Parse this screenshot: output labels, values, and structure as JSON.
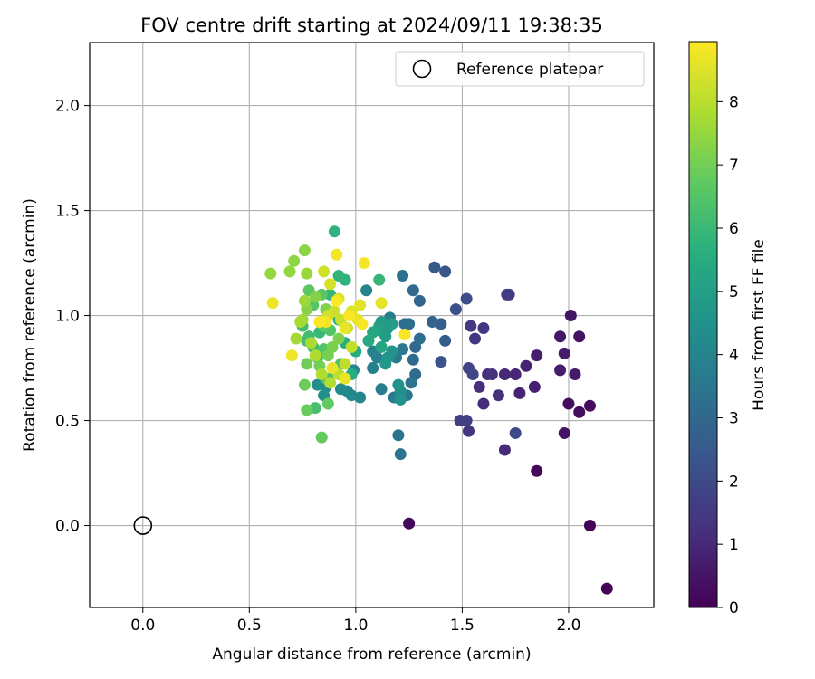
{
  "chart_data": {
    "type": "scatter",
    "title": "FOV centre drift starting at 2024/09/11 19:38:35",
    "xlabel": "Angular distance from reference (arcmin)",
    "ylabel": "Rotation from reference (arcmin)",
    "xlim": [
      -0.25,
      2.4
    ],
    "ylim": [
      -0.39,
      2.3
    ],
    "xticks": [
      "0.0",
      "0.5",
      "1.0",
      "1.5",
      "2.0"
    ],
    "yticks": [
      "0.0",
      "0.5",
      "1.0",
      "1.5",
      "2.0"
    ],
    "grid": true,
    "legend": {
      "position": "top-right",
      "entries": [
        "Reference platepar"
      ]
    },
    "reference_point": {
      "x": 0.0,
      "y": 0.0
    },
    "colorbar": {
      "label": "Hours from first FF file",
      "colormap": "viridis",
      "range": [
        0,
        8.95
      ],
      "ticks": [
        "0",
        "1",
        "2",
        "3",
        "4",
        "5",
        "6",
        "7",
        "8"
      ]
    },
    "points": [
      [
        2.18,
        -0.3,
        0.05
      ],
      [
        2.1,
        0.0,
        0.1
      ],
      [
        1.25,
        0.01,
        0.15
      ],
      [
        1.85,
        0.26,
        0.2
      ],
      [
        2.1,
        0.57,
        0.25
      ],
      [
        2.05,
        0.54,
        0.3
      ],
      [
        2.0,
        0.58,
        0.35
      ],
      [
        1.98,
        0.44,
        0.4
      ],
      [
        2.05,
        0.9,
        0.45
      ],
      [
        2.01,
        1.0,
        0.5
      ],
      [
        1.96,
        0.9,
        0.55
      ],
      [
        2.03,
        0.72,
        0.6
      ],
      [
        1.98,
        0.82,
        0.65
      ],
      [
        1.96,
        0.74,
        0.7
      ],
      [
        1.85,
        0.81,
        0.75
      ],
      [
        1.84,
        0.66,
        0.8
      ],
      [
        1.8,
        0.76,
        0.85
      ],
      [
        1.77,
        0.63,
        0.9
      ],
      [
        1.75,
        0.72,
        0.95
      ],
      [
        1.7,
        0.72,
        1.0
      ],
      [
        1.7,
        0.36,
        1.05
      ],
      [
        1.6,
        0.58,
        1.1
      ],
      [
        1.62,
        0.72,
        1.15
      ],
      [
        1.58,
        0.66,
        1.2
      ],
      [
        1.67,
        0.62,
        1.25
      ],
      [
        1.64,
        0.72,
        1.3
      ],
      [
        1.53,
        0.45,
        1.35
      ],
      [
        1.6,
        0.94,
        1.4
      ],
      [
        1.56,
        0.89,
        1.45
      ],
      [
        1.54,
        0.95,
        1.5
      ],
      [
        1.71,
        1.1,
        1.55
      ],
      [
        1.72,
        1.1,
        1.6
      ],
      [
        1.52,
        0.5,
        1.65
      ],
      [
        1.49,
        0.5,
        1.7
      ],
      [
        1.53,
        0.75,
        1.8
      ],
      [
        1.55,
        0.72,
        1.9
      ],
      [
        1.75,
        0.44,
        2.0
      ],
      [
        1.52,
        1.08,
        2.1
      ],
      [
        1.47,
        1.03,
        2.2
      ],
      [
        1.4,
        0.78,
        2.3
      ],
      [
        1.42,
        1.21,
        2.4
      ],
      [
        1.37,
        1.23,
        2.5
      ],
      [
        1.42,
        0.88,
        2.6
      ],
      [
        1.4,
        0.96,
        2.7
      ],
      [
        1.36,
        0.97,
        2.8
      ],
      [
        1.3,
        1.07,
        2.9
      ],
      [
        1.27,
        1.12,
        3.0
      ],
      [
        1.28,
        0.85,
        3.05
      ],
      [
        1.27,
        0.79,
        3.1
      ],
      [
        1.28,
        0.72,
        3.15
      ],
      [
        1.3,
        0.89,
        3.2
      ],
      [
        1.23,
        0.96,
        3.25
      ],
      [
        1.25,
        0.96,
        3.3
      ],
      [
        1.22,
        1.19,
        3.35
      ],
      [
        1.2,
        0.43,
        3.4
      ],
      [
        1.21,
        0.34,
        3.45
      ],
      [
        1.26,
        0.68,
        3.5
      ],
      [
        1.24,
        0.62,
        3.55
      ],
      [
        1.22,
        0.84,
        3.6
      ],
      [
        1.19,
        0.8,
        3.65
      ],
      [
        1.18,
        0.61,
        3.7
      ],
      [
        1.16,
        0.99,
        3.75
      ],
      [
        1.12,
        0.65,
        3.8
      ],
      [
        1.1,
        0.8,
        3.85
      ],
      [
        1.08,
        0.75,
        3.9
      ],
      [
        1.08,
        0.83,
        3.95
      ],
      [
        1.05,
        1.12,
        4.0
      ],
      [
        1.02,
        0.61,
        4.05
      ],
      [
        0.99,
        0.74,
        4.1
      ],
      [
        0.98,
        0.62,
        4.15
      ],
      [
        0.96,
        0.64,
        4.2
      ],
      [
        0.93,
        0.65,
        4.25
      ],
      [
        0.86,
        0.66,
        4.3
      ],
      [
        0.82,
        0.67,
        4.35
      ],
      [
        0.85,
        0.62,
        4.4
      ],
      [
        1.21,
        0.64,
        4.45
      ],
      [
        1.21,
        0.6,
        4.5
      ],
      [
        1.2,
        0.67,
        4.55
      ],
      [
        1.17,
        0.83,
        4.6
      ],
      [
        1.15,
        0.8,
        4.65
      ],
      [
        1.14,
        0.77,
        4.7
      ],
      [
        1.13,
        0.92,
        4.75
      ],
      [
        1.12,
        0.97,
        4.8
      ],
      [
        1.15,
        0.94,
        4.85
      ],
      [
        1.17,
        0.96,
        4.9
      ],
      [
        1.14,
        0.9,
        4.95
      ],
      [
        1.11,
        0.95,
        5.0
      ],
      [
        1.1,
        0.93,
        5.1
      ],
      [
        1.12,
        0.85,
        5.2
      ],
      [
        1.08,
        0.92,
        5.3
      ],
      [
        1.06,
        0.88,
        5.4
      ],
      [
        1.0,
        0.83,
        5.5
      ],
      [
        0.98,
        0.72,
        5.55
      ],
      [
        0.95,
        0.87,
        5.6
      ],
      [
        0.92,
        0.98,
        5.65
      ],
      [
        0.9,
        1.4,
        5.7
      ],
      [
        0.95,
        1.17,
        5.75
      ],
      [
        0.92,
        1.19,
        5.8
      ],
      [
        0.88,
        1.1,
        5.85
      ],
      [
        1.11,
        1.17,
        5.9
      ],
      [
        0.83,
        0.92,
        5.95
      ],
      [
        0.82,
        0.8,
        6.0
      ],
      [
        0.8,
        0.85,
        6.05
      ],
      [
        0.78,
        0.9,
        6.1
      ],
      [
        0.75,
        0.95,
        6.15
      ],
      [
        0.77,
        0.88,
        6.2
      ],
      [
        0.81,
        0.56,
        6.25
      ],
      [
        0.86,
        0.7,
        6.3
      ],
      [
        0.9,
        0.73,
        6.35
      ],
      [
        0.93,
        0.77,
        6.4
      ],
      [
        0.85,
        0.84,
        6.45
      ],
      [
        0.88,
        0.93,
        6.5
      ],
      [
        0.8,
        1.05,
        6.55
      ],
      [
        0.84,
        1.1,
        6.6
      ],
      [
        0.78,
        1.12,
        6.65
      ],
      [
        0.85,
        0.95,
        6.7
      ],
      [
        0.87,
        0.58,
        6.75
      ],
      [
        0.84,
        0.42,
        6.8
      ],
      [
        0.77,
        0.55,
        6.85
      ],
      [
        0.76,
        0.67,
        6.9
      ],
      [
        0.77,
        0.77,
        6.95
      ],
      [
        0.83,
        0.76,
        7.0
      ],
      [
        0.87,
        0.81,
        7.05
      ],
      [
        0.89,
        0.85,
        7.1
      ],
      [
        0.92,
        0.89,
        7.15
      ],
      [
        0.86,
        1.03,
        7.2
      ],
      [
        0.81,
        1.09,
        7.25
      ],
      [
        0.77,
        1.03,
        7.3
      ],
      [
        0.76,
        1.31,
        7.35
      ],
      [
        0.71,
        1.26,
        7.4
      ],
      [
        0.69,
        1.21,
        7.45
      ],
      [
        0.6,
        1.2,
        7.5
      ],
      [
        0.77,
        1.2,
        7.55
      ],
      [
        0.76,
        1.07,
        7.6
      ],
      [
        0.75,
        0.98,
        7.65
      ],
      [
        0.72,
        0.89,
        7.7
      ],
      [
        0.74,
        0.97,
        7.75
      ],
      [
        0.79,
        0.87,
        7.8
      ],
      [
        0.81,
        0.81,
        7.85
      ],
      [
        0.84,
        0.72,
        7.9
      ],
      [
        0.88,
        0.68,
        7.95
      ],
      [
        0.92,
        0.72,
        8.0
      ],
      [
        0.95,
        0.77,
        8.05
      ],
      [
        0.98,
        0.85,
        8.1
      ],
      [
        0.96,
        0.94,
        8.15
      ],
      [
        0.93,
        0.98,
        8.2
      ],
      [
        0.9,
        1.02,
        8.25
      ],
      [
        0.87,
        1.0,
        8.3
      ],
      [
        0.85,
        1.21,
        8.35
      ],
      [
        0.88,
        1.15,
        8.4
      ],
      [
        0.92,
        1.08,
        8.45
      ],
      [
        0.98,
        1.02,
        8.5
      ],
      [
        1.02,
        1.05,
        8.55
      ],
      [
        1.12,
        1.06,
        8.6
      ],
      [
        1.01,
        0.98,
        8.62
      ],
      [
        0.95,
        0.94,
        8.65
      ],
      [
        0.89,
        0.75,
        8.68
      ],
      [
        0.95,
        0.7,
        8.7
      ],
      [
        0.7,
        0.81,
        8.72
      ],
      [
        0.61,
        1.06,
        8.75
      ],
      [
        0.86,
        0.97,
        8.78
      ],
      [
        0.91,
        1.29,
        8.8
      ],
      [
        1.04,
        1.25,
        8.82
      ],
      [
        1.23,
        0.91,
        8.85
      ],
      [
        1.03,
        0.96,
        8.88
      ],
      [
        0.97,
        1.0,
        8.9
      ],
      [
        0.91,
        1.07,
        8.92
      ],
      [
        0.83,
        0.97,
        8.94
      ]
    ]
  }
}
